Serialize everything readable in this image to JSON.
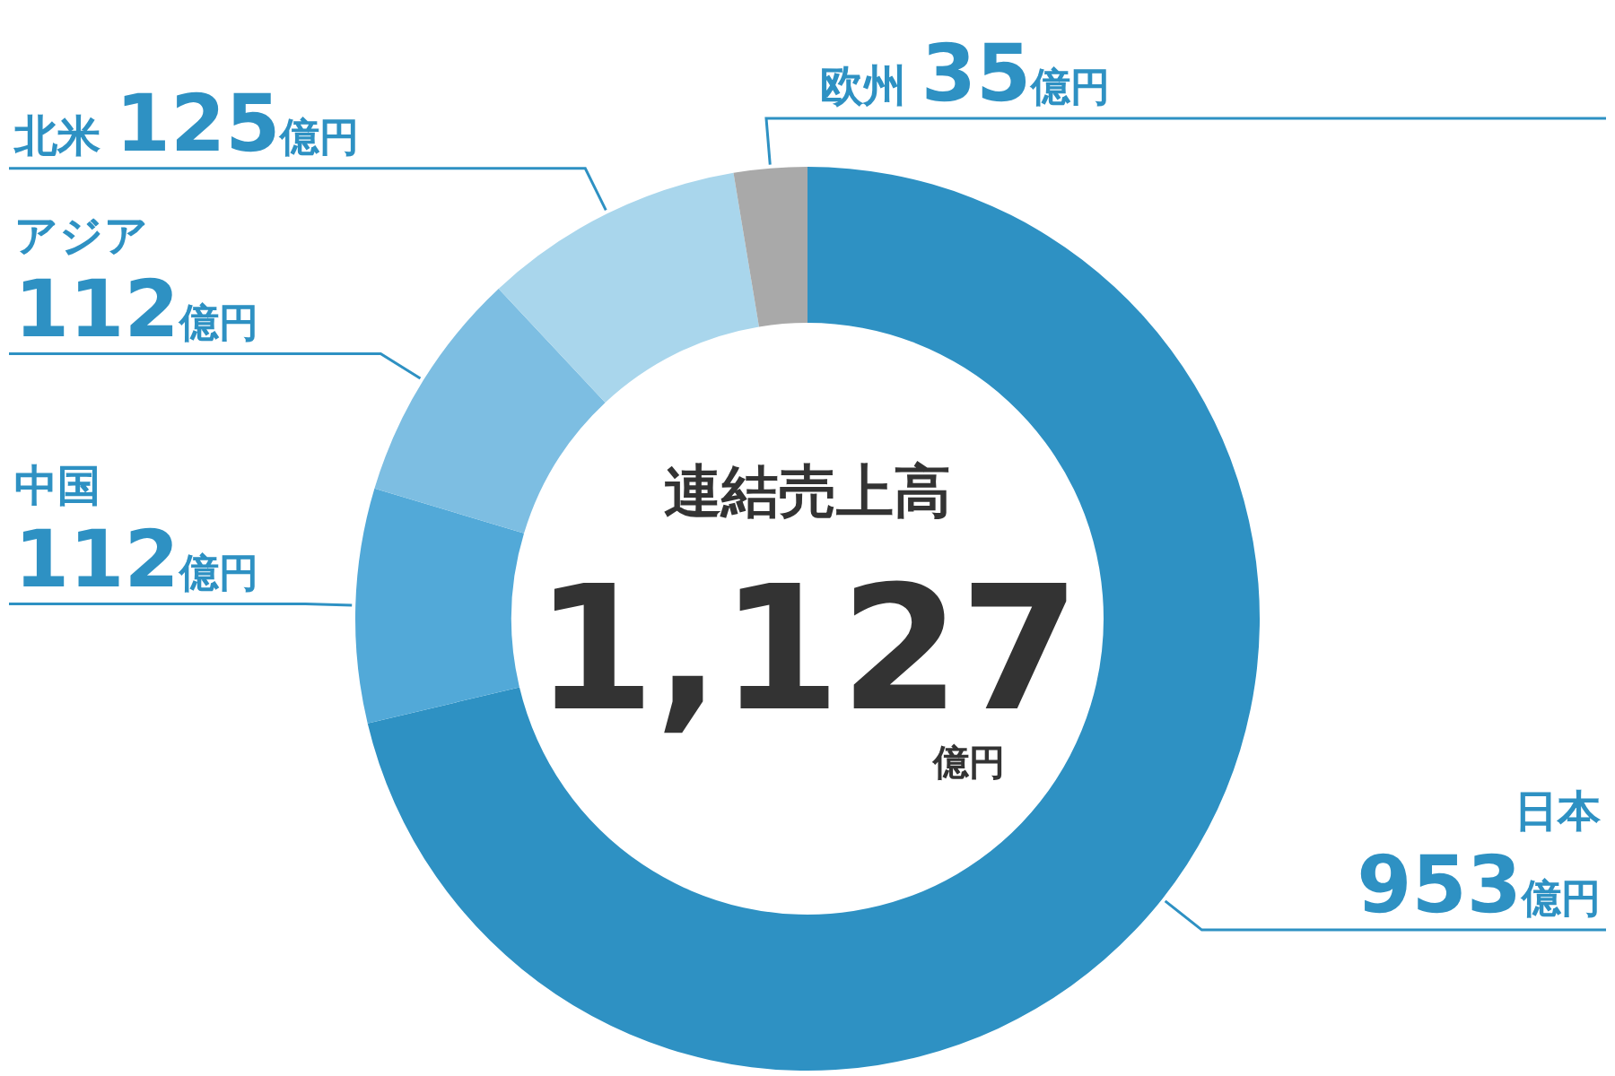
{
  "chart_data": {
    "type": "donut",
    "title": "連結売上高",
    "categories": [
      "日本",
      "中国",
      "アジア",
      "北米",
      "欧州"
    ],
    "values": [
      953,
      112,
      112,
      125,
      35
    ],
    "value_labels": [
      "953億円",
      "112億円",
      "112億円",
      "125億円",
      "35億円"
    ],
    "colors": [
      "#2e91c3",
      "#52a9d8",
      "#7dbee2",
      "#a9d6ec",
      "#a9a9a9"
    ],
    "annotations": [
      "1,127",
      "億円"
    ]
  }
}
